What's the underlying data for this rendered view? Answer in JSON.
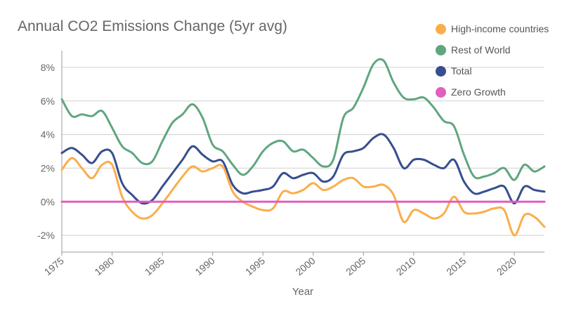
{
  "chart_data": {
    "type": "line",
    "title": "Annual CO2 Emissions Change (5yr avg)",
    "xlabel": "Year",
    "ylabel": "",
    "xlim": [
      1975,
      2023
    ],
    "ylim": [
      -3,
      9
    ],
    "x_ticks": [
      {
        "value": 1975,
        "label": "1975"
      },
      {
        "value": 1980,
        "label": "1980"
      },
      {
        "value": 1985,
        "label": "1985"
      },
      {
        "value": 1990,
        "label": "1990"
      },
      {
        "value": 1995,
        "label": "1995"
      },
      {
        "value": 2000,
        "label": "2000"
      },
      {
        "value": 2005,
        "label": "2005"
      },
      {
        "value": 2010,
        "label": "2010"
      },
      {
        "value": 2015,
        "label": "2015"
      },
      {
        "value": 2020,
        "label": "2020"
      }
    ],
    "y_ticks": [
      {
        "value": -2,
        "label": "-2%"
      },
      {
        "value": 0,
        "label": "0%"
      },
      {
        "value": 2,
        "label": "2%"
      },
      {
        "value": 4,
        "label": "4%"
      },
      {
        "value": 6,
        "label": "6%"
      },
      {
        "value": 8,
        "label": "8%"
      }
    ],
    "grid": true,
    "legend_position": "top-right",
    "x": [
      1975,
      1976,
      1977,
      1978,
      1979,
      1980,
      1981,
      1982,
      1983,
      1984,
      1985,
      1986,
      1987,
      1988,
      1989,
      1990,
      1991,
      1992,
      1993,
      1994,
      1995,
      1996,
      1997,
      1998,
      1999,
      2000,
      2001,
      2002,
      2003,
      2004,
      2005,
      2006,
      2007,
      2008,
      2009,
      2010,
      2011,
      2012,
      2013,
      2014,
      2015,
      2016,
      2017,
      2018,
      2019,
      2020,
      2021,
      2022,
      2023
    ],
    "series": [
      {
        "name": "High-income countries",
        "color": "#fbad4a",
        "values": [
          1.9,
          2.6,
          2.0,
          1.4,
          2.2,
          2.2,
          0.3,
          -0.6,
          -1.0,
          -0.8,
          -0.1,
          0.7,
          1.5,
          2.1,
          1.8,
          2.0,
          2.1,
          0.6,
          0.0,
          -0.3,
          -0.5,
          -0.4,
          0.6,
          0.5,
          0.7,
          1.1,
          0.7,
          0.9,
          1.3,
          1.4,
          0.9,
          0.9,
          1.0,
          0.4,
          -1.2,
          -0.5,
          -0.7,
          -1.0,
          -0.7,
          0.3,
          -0.6,
          -0.7,
          -0.6,
          -0.4,
          -0.5,
          -2.0,
          -0.8,
          -0.9,
          -1.5
        ]
      },
      {
        "name": "Rest of World",
        "color": "#5fa67f",
        "values": [
          6.1,
          5.1,
          5.2,
          5.1,
          5.4,
          4.4,
          3.3,
          2.9,
          2.3,
          2.4,
          3.6,
          4.7,
          5.2,
          5.8,
          5.0,
          3.4,
          3.0,
          2.2,
          1.6,
          2.1,
          3.0,
          3.5,
          3.6,
          3.0,
          3.1,
          2.6,
          2.1,
          2.5,
          5.0,
          5.6,
          6.8,
          8.2,
          8.4,
          7.1,
          6.2,
          6.1,
          6.2,
          5.6,
          4.8,
          4.5,
          2.8,
          1.5,
          1.5,
          1.7,
          2.0,
          1.3,
          2.2,
          1.8,
          2.1
        ]
      },
      {
        "name": "Total",
        "color": "#374e8f",
        "values": [
          2.9,
          3.2,
          2.8,
          2.3,
          3.0,
          2.9,
          1.1,
          0.4,
          -0.1,
          0.1,
          0.9,
          1.7,
          2.5,
          3.3,
          2.8,
          2.4,
          2.4,
          1.0,
          0.5,
          0.6,
          0.7,
          0.9,
          1.7,
          1.4,
          1.6,
          1.7,
          1.2,
          1.5,
          2.8,
          3.0,
          3.2,
          3.8,
          4.0,
          3.2,
          2.0,
          2.5,
          2.5,
          2.2,
          2.0,
          2.5,
          1.2,
          0.5,
          0.6,
          0.8,
          0.9,
          -0.1,
          0.9,
          0.7,
          0.6
        ]
      },
      {
        "name": "Zero Growth",
        "color": "#e05fbf",
        "values": [
          0,
          0,
          0,
          0,
          0,
          0,
          0,
          0,
          0,
          0,
          0,
          0,
          0,
          0,
          0,
          0,
          0,
          0,
          0,
          0,
          0,
          0,
          0,
          0,
          0,
          0,
          0,
          0,
          0,
          0,
          0,
          0,
          0,
          0,
          0,
          0,
          0,
          0,
          0,
          0,
          0,
          0,
          0,
          0,
          0,
          0,
          0,
          0,
          0
        ]
      }
    ]
  }
}
